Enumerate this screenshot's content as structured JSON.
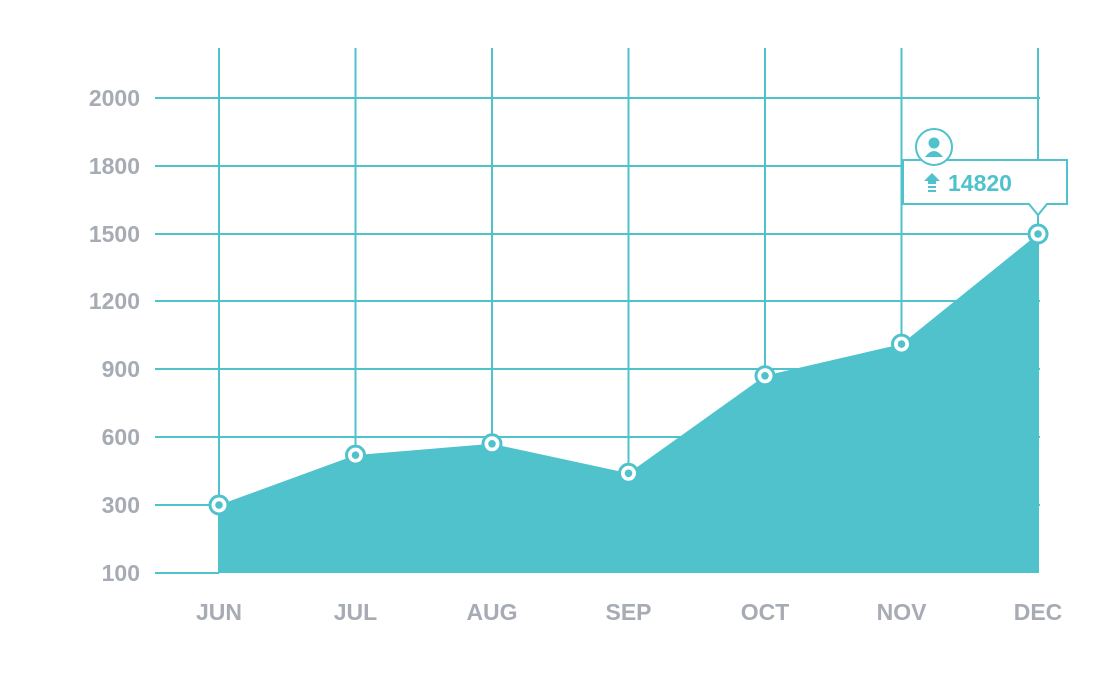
{
  "chart_data": {
    "type": "area",
    "categories": [
      "JUN",
      "JUL",
      "AUG",
      "SEP",
      "OCT",
      "NOV",
      "DEC"
    ],
    "values": [
      300,
      520,
      570,
      440,
      870,
      1010,
      1500
    ],
    "y_ticks": [
      100,
      300,
      600,
      900,
      1200,
      1500,
      1800,
      2000
    ],
    "title": "",
    "xlabel": "",
    "ylabel": "",
    "grid": true,
    "callout": {
      "category": "DEC",
      "text": "14820",
      "icons": [
        "user-icon",
        "arrow-up-icon"
      ]
    }
  },
  "colors": {
    "accent": "#4fc2cc",
    "grid": "#4fc2cc",
    "tick_text": "#a6abb4",
    "background": "#ffffff"
  }
}
